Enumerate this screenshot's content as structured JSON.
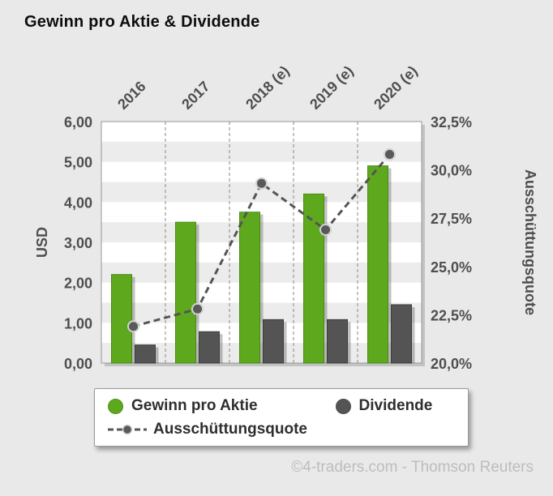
{
  "title": "Gewinn pro Aktie & Dividende",
  "footer": "©4-traders.com - Thomson Reuters",
  "colors": {
    "eps": "#5ea81e",
    "dividend": "#545454",
    "line": "#555555"
  },
  "legend": {
    "eps_label": "Gewinn pro Aktie",
    "dividend_label": "Dividende",
    "payout_label": "Ausschüttungsquote"
  },
  "chart_data": {
    "type": "bar",
    "title": "Gewinn pro Aktie & Dividende",
    "categories": [
      "2016",
      "2017",
      "2018 (e)",
      "2019 (e)",
      "2020 (e)"
    ],
    "series": [
      {
        "name": "Gewinn pro Aktie",
        "type": "bar",
        "axis": "left",
        "values": [
          2.2,
          3.5,
          3.75,
          4.2,
          4.9
        ]
      },
      {
        "name": "Dividende",
        "type": "bar",
        "axis": "left",
        "values": [
          0.45,
          0.78,
          1.08,
          1.08,
          1.45
        ]
      },
      {
        "name": "Ausschüttungsquote",
        "type": "line",
        "axis": "right",
        "values": [
          21.9,
          22.8,
          29.3,
          26.9,
          30.8
        ]
      }
    ],
    "left_axis": {
      "label": "USD",
      "min": 0,
      "max": 6,
      "step": 1,
      "tick_labels": [
        "0,00",
        "1,00",
        "2,00",
        "3,00",
        "4,00",
        "5,00",
        "6,00"
      ]
    },
    "right_axis": {
      "label": "Ausschüttungsquote",
      "min": 20,
      "max": 32.5,
      "step": 2.5,
      "tick_labels": [
        "20,0%",
        "22,5%",
        "25,0%",
        "27,5%",
        "30,0%",
        "32,5%"
      ]
    },
    "grid": "vertical-dashed, horizontal striped bands every 0.5",
    "legend_position": "bottom"
  }
}
